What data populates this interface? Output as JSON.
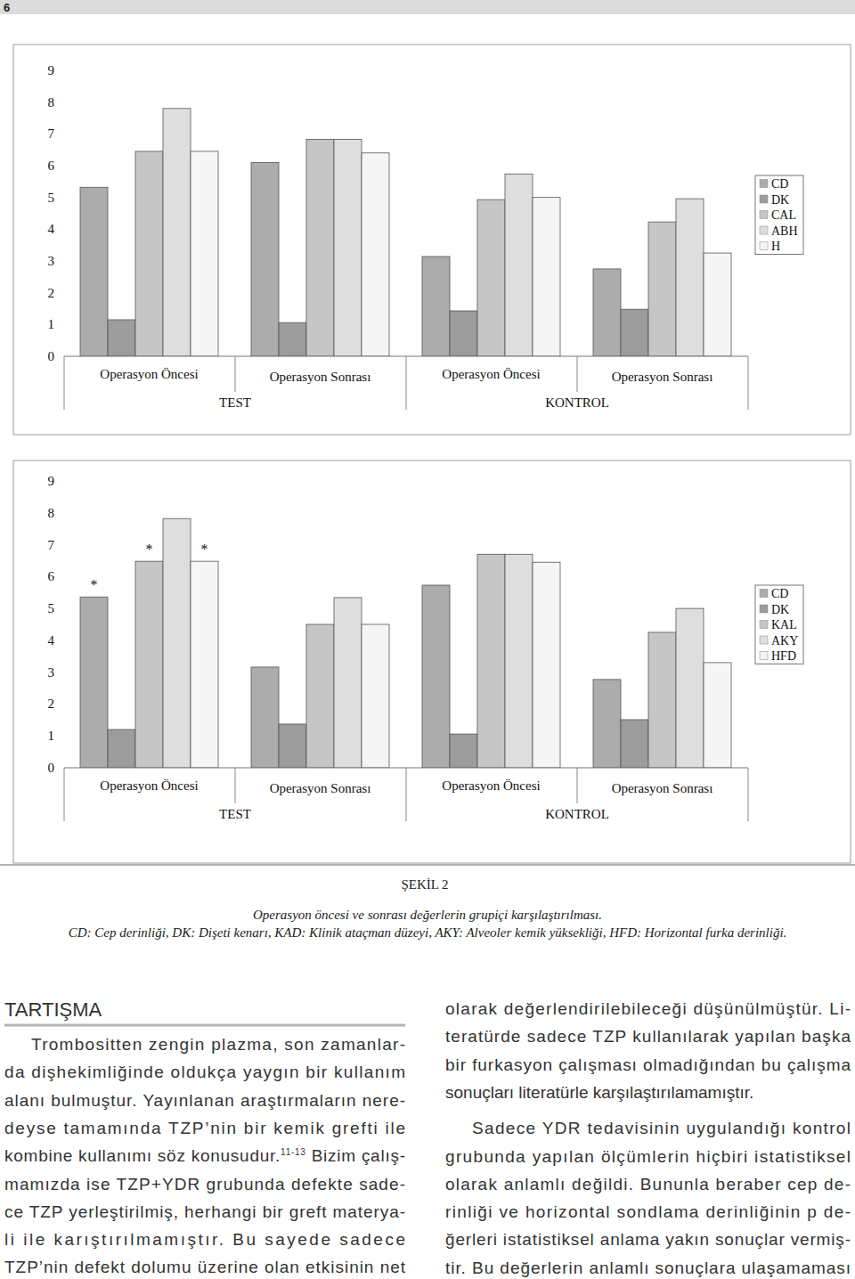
{
  "page_number": "6",
  "chart_data": [
    {
      "type": "bar",
      "categories": [
        "Operasyon Öncesi",
        "Operasyon Sonrası",
        "Operasyon Öncesi",
        "Operasyon Sonrası"
      ],
      "category_groups": [
        {
          "label": "TEST",
          "categories": [
            0,
            1
          ]
        },
        {
          "label": "KONTROL",
          "categories": [
            2,
            3
          ]
        }
      ],
      "series": [
        {
          "name": "CD",
          "color": "#acacac",
          "values": [
            5.32,
            6.1,
            3.14,
            2.75
          ]
        },
        {
          "name": "DK",
          "color": "#9c9c9c",
          "values": [
            1.15,
            1.06,
            1.43,
            1.48
          ]
        },
        {
          "name": "CAL",
          "color": "#c6c6c6",
          "values": [
            6.45,
            6.83,
            4.93,
            4.23
          ]
        },
        {
          "name": "ABH",
          "color": "#dedede",
          "values": [
            7.8,
            6.83,
            5.74,
            4.96
          ]
        },
        {
          "name": "H",
          "color": "#f5f5f5",
          "values": [
            6.45,
            6.4,
            5.0,
            3.25
          ]
        }
      ],
      "ylim": [
        0,
        9
      ],
      "yticks": [
        0,
        1,
        2,
        3,
        4,
        5,
        6,
        7,
        8,
        9
      ],
      "grid": false,
      "legend": "right"
    },
    {
      "type": "bar",
      "categories": [
        "Operasyon Öncesi",
        "Operasyon Sonrası",
        "Operasyon Öncesi",
        "Operasyon Sonrası"
      ],
      "category_groups": [
        {
          "label": "TEST",
          "categories": [
            0,
            1
          ]
        },
        {
          "label": "KONTROL",
          "categories": [
            2,
            3
          ]
        }
      ],
      "series": [
        {
          "name": "CD",
          "color": "#acacac",
          "values": [
            5.36,
            3.16,
            5.73,
            2.77
          ]
        },
        {
          "name": "DK",
          "color": "#9c9c9c",
          "values": [
            1.2,
            1.37,
            1.06,
            1.51
          ]
        },
        {
          "name": "KAL",
          "color": "#c6c6c6",
          "values": [
            6.48,
            4.5,
            6.7,
            4.25
          ]
        },
        {
          "name": "AKY",
          "color": "#dedede",
          "values": [
            7.82,
            5.34,
            6.7,
            5.0
          ]
        },
        {
          "name": "HFD",
          "color": "#f5f5f5",
          "values": [
            6.48,
            4.5,
            6.45,
            3.3
          ]
        }
      ],
      "annotations": [
        {
          "text": "*",
          "series": 0,
          "index": 0
        },
        {
          "text": "*",
          "series": 2,
          "index": 0
        },
        {
          "text": "*",
          "series": 4,
          "index": 0
        }
      ],
      "ylim": [
        0,
        9
      ],
      "yticks": [
        0,
        1,
        2,
        3,
        4,
        5,
        6,
        7,
        8,
        9
      ],
      "grid": false,
      "legend": "right"
    }
  ],
  "figure": {
    "label": "ŞEKİL 2",
    "caption": [
      "Operasyon öncesi ve sonrası değerlerin grupiçi karşılaştırılması.",
      "CD: Cep derinliği, DK: Dişeti kenarı, KAD: Klinik ataçman düzeyi, AKY: Alveoler kemik yüksekliği, HFD: Horizontal furka derinliği."
    ]
  },
  "section": {
    "title": "TARTIŞMA",
    "columns": [
      [
        {
          "lines": [
            "Trombositten zengin plazma, son zamanlar-",
            "da dişhekimliğinde oldukça yaygın bir kullanım",
            "alanı bulmuştur. Yayınlanan araştırmaların nere-",
            "deyse tamamında TZP’nin bir kemik grefti ile",
            {
              "text": "kombine kullanımı söz konusudur.",
              "citation": "11-13",
              "continuation": " Bizim çalış-"
            },
            "mamızda ise TZP+YDR grubunda defekte sade-",
            "ce TZP yerleştirilmiş, herhangi bir greft materya-",
            "li ile karıştırılmamıştır. Bu sayede sadece",
            "TZP’nin defekt dolumu üzerine olan etkisinin net"
          ]
        }
      ],
      [
        {
          "lines": [
            "olarak değerlendirilebileceği düşünülmüştür. Li-",
            "teratürde sadece TZP kullanılarak yapılan başka",
            "bir furkasyon çalışması olmadığından bu çalışma",
            "sonuçları literatürle karşılaştırılamamıştır."
          ]
        },
        {
          "lines": [
            "Sadece YDR tedavisinin uygulandığı kontrol",
            "grubunda yapılan ölçümlerin hiçbiri istatistiksel",
            "olarak anlamlı değildi. Bununla beraber cep de-",
            "rinliği ve horizontal sondlama derinliğinin p de-",
            "ğerleri istatistiksel anlama yakın sonuçlar vermiş-",
            "tir. Bu değerlerin anlamlı sonuçlara ulaşamaması"
          ]
        }
      ]
    ]
  }
}
